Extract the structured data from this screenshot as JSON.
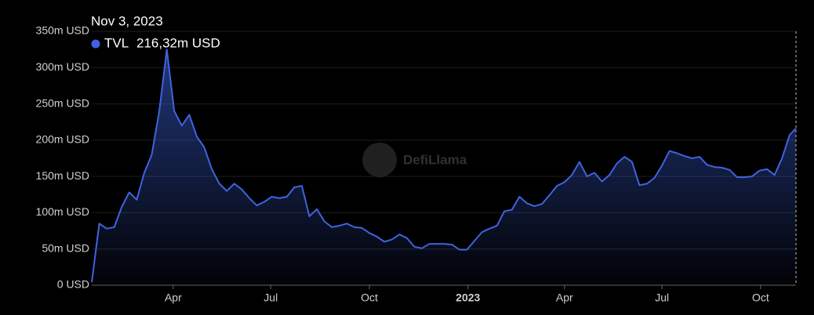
{
  "chart_data": {
    "type": "area",
    "series": [
      {
        "name": "TVL",
        "color": "#3f63e0",
        "x": [
          "2022-01-15",
          "2022-01-22",
          "2022-01-29",
          "2022-02-05",
          "2022-02-12",
          "2022-02-19",
          "2022-02-26",
          "2022-03-05",
          "2022-03-12",
          "2022-03-19",
          "2022-03-26",
          "2022-04-02",
          "2022-04-09",
          "2022-04-16",
          "2022-04-23",
          "2022-04-30",
          "2022-05-07",
          "2022-05-14",
          "2022-05-21",
          "2022-05-28",
          "2022-06-04",
          "2022-06-11",
          "2022-06-18",
          "2022-06-25",
          "2022-07-02",
          "2022-07-09",
          "2022-07-16",
          "2022-07-23",
          "2022-07-30",
          "2022-08-06",
          "2022-08-13",
          "2022-08-20",
          "2022-08-27",
          "2022-09-03",
          "2022-09-10",
          "2022-09-17",
          "2022-09-24",
          "2022-10-01",
          "2022-10-08",
          "2022-10-15",
          "2022-10-22",
          "2022-10-29",
          "2022-11-05",
          "2022-11-12",
          "2022-11-19",
          "2022-11-26",
          "2022-12-03",
          "2022-12-10",
          "2022-12-17",
          "2022-12-24",
          "2022-12-31",
          "2023-01-07",
          "2023-01-14",
          "2023-01-21",
          "2023-01-28",
          "2023-02-04",
          "2023-02-11",
          "2023-02-18",
          "2023-02-25",
          "2023-03-04",
          "2023-03-11",
          "2023-03-18",
          "2023-03-25",
          "2023-04-01",
          "2023-04-08",
          "2023-04-15",
          "2023-04-22",
          "2023-04-29",
          "2023-05-06",
          "2023-05-13",
          "2023-05-20",
          "2023-05-27",
          "2023-06-03",
          "2023-06-10",
          "2023-06-17",
          "2023-06-24",
          "2023-07-01",
          "2023-07-08",
          "2023-07-15",
          "2023-07-22",
          "2023-07-29",
          "2023-08-05",
          "2023-08-12",
          "2023-08-19",
          "2023-08-26",
          "2023-09-02",
          "2023-09-09",
          "2023-09-16",
          "2023-09-23",
          "2023-09-30",
          "2023-10-07",
          "2023-10-14",
          "2023-10-21",
          "2023-10-28",
          "2023-11-03"
        ],
        "values": [
          4,
          85,
          78,
          80,
          108,
          128,
          118,
          155,
          180,
          240,
          325,
          240,
          220,
          235,
          205,
          190,
          160,
          140,
          130,
          140,
          132,
          120,
          110,
          115,
          122,
          120,
          122,
          135,
          137,
          95,
          105,
          88,
          80,
          82,
          85,
          80,
          79,
          72,
          67,
          60,
          63,
          70,
          65,
          53,
          51,
          57,
          57,
          57,
          56,
          49,
          49,
          61,
          73,
          78,
          82,
          102,
          104,
          122,
          113,
          109,
          112,
          124,
          137,
          142,
          152,
          170,
          150,
          155,
          143,
          152,
          168,
          177,
          170,
          138,
          140,
          148,
          165,
          185,
          182,
          178,
          175,
          177,
          166,
          163,
          162,
          159,
          149,
          149,
          150,
          158,
          160,
          152,
          175,
          207,
          216.32
        ]
      }
    ],
    "xlim": [
      "2022-01-15",
      "2023-11-03"
    ],
    "xticks": [
      {
        "value": "2022-04-01",
        "label": "Apr"
      },
      {
        "value": "2022-07-01",
        "label": "Jul"
      },
      {
        "value": "2022-10-01",
        "label": "Oct"
      },
      {
        "value": "2023-01-01",
        "label": "2023"
      },
      {
        "value": "2023-04-01",
        "label": "Apr"
      },
      {
        "value": "2023-07-01",
        "label": "Jul"
      },
      {
        "value": "2023-10-01",
        "label": "Oct"
      }
    ],
    "ylim": [
      0,
      350
    ],
    "yticks": [
      {
        "value": 0,
        "label": "0 USD"
      },
      {
        "value": 50,
        "label": "50m USD"
      },
      {
        "value": 100,
        "label": "100m USD"
      },
      {
        "value": 150,
        "label": "150m USD"
      },
      {
        "value": 200,
        "label": "200m USD"
      },
      {
        "value": 250,
        "label": "250m USD"
      },
      {
        "value": 300,
        "label": "300m USD"
      },
      {
        "value": 350,
        "label": "350m USD"
      }
    ],
    "grid": true,
    "tooltip": {
      "title": "Nov 3, 2023",
      "value_label": "216,32m USD"
    },
    "watermark": "DefiLlama"
  }
}
